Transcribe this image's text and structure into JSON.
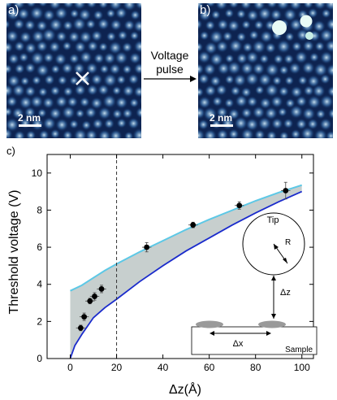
{
  "panels": {
    "a": {
      "label": "a)",
      "scale": "2 nm"
    },
    "b": {
      "label": "b)",
      "scale": "2 nm"
    },
    "arrow": {
      "line1": "Voltage",
      "line2": "pulse"
    }
  },
  "colors": {
    "stm_dark": "#0d2350",
    "stm_mid": "#3a6ea8",
    "stm_light": "#cde6f5",
    "band_fill": "#b4bfbd",
    "upper_curve": "#5cc8e6",
    "lower_curve": "#1a2bcc"
  },
  "chart_data": {
    "type": "scatter",
    "panel_label": "c)",
    "xlabel": "Δz(Å)",
    "ylabel": "Threshold voltage (V)",
    "xlim": [
      -10,
      105
    ],
    "ylim": [
      0,
      11
    ],
    "xticks": [
      0,
      20,
      40,
      60,
      80,
      100
    ],
    "yticks": [
      0,
      2,
      4,
      6,
      8,
      10
    ],
    "vline_x": 20,
    "points": [
      {
        "x": 4.5,
        "y": 1.65,
        "xerr": 2,
        "yerr": 0.15
      },
      {
        "x": 6,
        "y": 2.25,
        "xerr": 2,
        "yerr": 0.2
      },
      {
        "x": 8.5,
        "y": 3.1,
        "xerr": 2,
        "yerr": 0.15
      },
      {
        "x": 10.5,
        "y": 3.35,
        "xerr": 2,
        "yerr": 0.2
      },
      {
        "x": 13.5,
        "y": 3.75,
        "xerr": 2,
        "yerr": 0.2
      },
      {
        "x": 33,
        "y": 6.0,
        "xerr": 2,
        "yerr": 0.25
      },
      {
        "x": 53,
        "y": 7.2,
        "xerr": 2,
        "yerr": 0.15
      },
      {
        "x": 73,
        "y": 8.25,
        "xerr": 2,
        "yerr": 0.2
      },
      {
        "x": 93,
        "y": 9.05,
        "xerr": 2,
        "yerr": 0.45
      }
    ],
    "upper_curve": {
      "x": [
        0,
        5,
        10,
        15,
        20,
        30,
        40,
        50,
        60,
        70,
        80,
        90,
        100
      ],
      "y": [
        3.65,
        3.95,
        4.35,
        4.75,
        5.1,
        5.75,
        6.35,
        6.95,
        7.5,
        8.0,
        8.5,
        8.95,
        9.35
      ]
    },
    "lower_curve": {
      "x": [
        0,
        2,
        5,
        10,
        15,
        20,
        30,
        40,
        50,
        60,
        70,
        80,
        90,
        100
      ],
      "y": [
        0,
        0.7,
        1.3,
        2.2,
        2.75,
        3.2,
        4.15,
        5.0,
        5.8,
        6.5,
        7.2,
        7.85,
        8.45,
        9.0
      ]
    },
    "inset": {
      "tip_label": "Tip",
      "radius_label": "R",
      "dz_label": "Δz",
      "dx_label": "Δx",
      "sample_label": "Sample"
    }
  }
}
